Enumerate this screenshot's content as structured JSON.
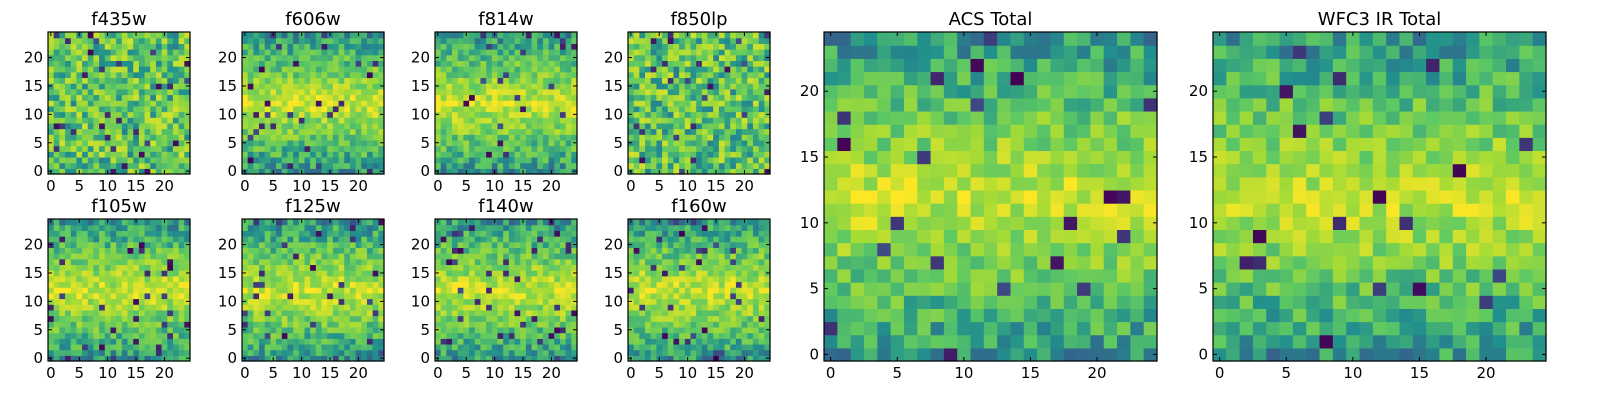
{
  "figure": {
    "description_colormap": "viridis",
    "colors": {
      "c0": "#440154",
      "c1": "#3b528b",
      "c2": "#21908d",
      "c3": "#5dc863",
      "c4": "#a5db36",
      "c5": "#fde725"
    }
  },
  "chart_data": [
    {
      "type": "heatmap",
      "title": "f435w",
      "grid_size": 25,
      "xticks": [
        "0",
        "5",
        "10",
        "15",
        "20"
      ],
      "yticks": [
        "0",
        "5",
        "10",
        "15",
        "20"
      ],
      "pattern": "uniform",
      "seed": 11
    },
    {
      "type": "heatmap",
      "title": "f606w",
      "grid_size": 25,
      "xticks": [
        "0",
        "5",
        "10",
        "15",
        "20"
      ],
      "yticks": [
        "0",
        "5",
        "10",
        "15",
        "20"
      ],
      "pattern": "band",
      "seed": 23
    },
    {
      "type": "heatmap",
      "title": "f814w",
      "grid_size": 25,
      "xticks": [
        "0",
        "5",
        "10",
        "15",
        "20"
      ],
      "yticks": [
        "0",
        "5",
        "10",
        "15",
        "20"
      ],
      "pattern": "band",
      "seed": 37
    },
    {
      "type": "heatmap",
      "title": "f850lp",
      "grid_size": 25,
      "xticks": [
        "0",
        "5",
        "10",
        "15",
        "20"
      ],
      "yticks": [
        "0",
        "5",
        "10",
        "15",
        "20"
      ],
      "pattern": "uniform",
      "seed": 41
    },
    {
      "type": "heatmap",
      "title": "f105w",
      "grid_size": 25,
      "xticks": [
        "0",
        "5",
        "10",
        "15",
        "20"
      ],
      "yticks": [
        "0",
        "5",
        "10",
        "15",
        "20"
      ],
      "pattern": "band",
      "seed": 53
    },
    {
      "type": "heatmap",
      "title": "f125w",
      "grid_size": 25,
      "xticks": [
        "0",
        "5",
        "10",
        "15",
        "20"
      ],
      "yticks": [
        "0",
        "5",
        "10",
        "15",
        "20"
      ],
      "pattern": "band",
      "seed": 67
    },
    {
      "type": "heatmap",
      "title": "f140w",
      "grid_size": 25,
      "xticks": [
        "0",
        "5",
        "10",
        "15",
        "20"
      ],
      "yticks": [
        "0",
        "5",
        "10",
        "15",
        "20"
      ],
      "pattern": "band",
      "seed": 71
    },
    {
      "type": "heatmap",
      "title": "f160w",
      "grid_size": 25,
      "xticks": [
        "0",
        "5",
        "10",
        "15",
        "20"
      ],
      "yticks": [
        "0",
        "5",
        "10",
        "15",
        "20"
      ],
      "pattern": "band",
      "seed": 83
    },
    {
      "type": "heatmap",
      "title": "ACS Total",
      "grid_size": 25,
      "xticks": [
        "0",
        "5",
        "10",
        "15",
        "20"
      ],
      "yticks": [
        "0",
        "5",
        "10",
        "15",
        "20"
      ],
      "pattern": "band",
      "seed": 97
    },
    {
      "type": "heatmap",
      "title": "WFC3 IR Total",
      "grid_size": 25,
      "xticks": [
        "0",
        "5",
        "10",
        "15",
        "20"
      ],
      "yticks": [
        "0",
        "5",
        "10",
        "15",
        "20"
      ],
      "pattern": "band",
      "seed": 101
    }
  ]
}
